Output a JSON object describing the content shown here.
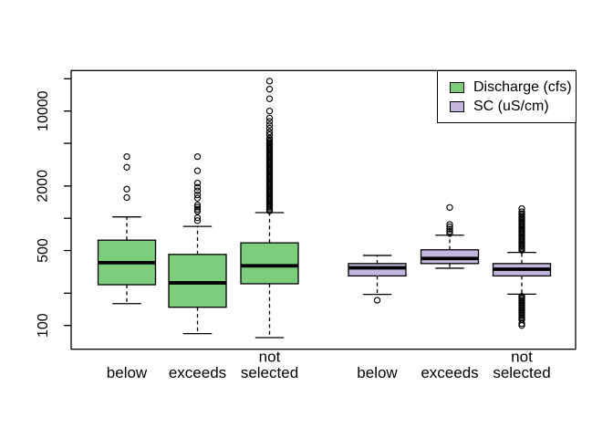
{
  "colors": {
    "discharge_green": "#7CCD7C",
    "sc_lavender": "#C3B5DC",
    "stroke_black": "#000000",
    "background": "#FFFFFF"
  },
  "legend": {
    "position": "topright",
    "entries": [
      {
        "label": "Discharge (cfs)",
        "color": "#7CCD7C"
      },
      {
        "label": "SC (uS/cm)",
        "color": "#C3B5DC"
      }
    ]
  },
  "chart_data": {
    "type": "boxplot",
    "title": "",
    "xlabel": "",
    "ylabel": "",
    "log_scale_y": true,
    "ylim": [
      60,
      24000
    ],
    "grid": false,
    "legend_position": "topright",
    "yaxis_ticks": [
      {
        "value": 100,
        "label": "100"
      },
      {
        "value": 200,
        "label": ""
      },
      {
        "value": 500,
        "label": "500"
      },
      {
        "value": 1000,
        "label": ""
      },
      {
        "value": 2000,
        "label": "2000"
      },
      {
        "value": 5000,
        "label": ""
      },
      {
        "value": 10000,
        "label": "10000"
      },
      {
        "value": 20000,
        "label": ""
      }
    ],
    "category_labels": [
      [
        "below"
      ],
      [
        "exceeds"
      ],
      [
        "not",
        "selected"
      ],
      [
        "below"
      ],
      [
        "exceeds"
      ],
      [
        "not",
        "selected"
      ]
    ],
    "boxes": [
      {
        "series": "Discharge (cfs)",
        "category": "below",
        "color": "#7CCD7C",
        "whisker_low": 160,
        "q1": 240,
        "median": 385,
        "q3": 625,
        "whisker_high": 1030,
        "outliers": [
          1560,
          1870,
          2990,
          3760
        ],
        "dense_outlier_ranges": []
      },
      {
        "series": "Discharge (cfs)",
        "category": "exceeds",
        "color": "#7CCD7C",
        "whisker_low": 84,
        "q1": 148,
        "median": 250,
        "q3": 460,
        "whisker_high": 840,
        "outliers": [
          950,
          1010,
          1160,
          1210,
          1270,
          1330,
          1540,
          1650,
          1800,
          1950,
          2130,
          2770,
          3760
        ],
        "dense_outlier_ranges": []
      },
      {
        "series": "Discharge (cfs)",
        "category": "not selected",
        "color": "#7CCD7C",
        "whisker_low": 77,
        "q1": 245,
        "median": 360,
        "q3": 590,
        "whisker_high": 1130,
        "outliers": [
          6000,
          6400,
          6900,
          7400,
          8000,
          8600,
          10000,
          13000,
          16000,
          19000
        ],
        "dense_outlier_ranges": [
          {
            "min": 1160,
            "max": 5600
          }
        ]
      },
      {
        "series": "SC (uS/cm)",
        "category": "below",
        "color": "#C3B5DC",
        "whisker_low": 195,
        "q1": 290,
        "median": 345,
        "q3": 378,
        "whisker_high": 450,
        "outliers": [
          172
        ],
        "dense_outlier_ranges": []
      },
      {
        "series": "SC (uS/cm)",
        "category": "exceeds",
        "color": "#C3B5DC",
        "whisker_low": 342,
        "q1": 378,
        "median": 422,
        "q3": 508,
        "whisker_high": 695,
        "outliers": [
          720,
          755,
          790,
          830,
          875,
          1260
        ],
        "dense_outlier_ranges": []
      },
      {
        "series": "SC (uS/cm)",
        "category": "not selected",
        "color": "#C3B5DC",
        "whisker_low": 196,
        "q1": 290,
        "median": 335,
        "q3": 378,
        "whisker_high": 480,
        "outliers": [
          100,
          104,
          1150,
          1230
        ],
        "dense_outlier_ranges": [
          {
            "min": 110,
            "max": 187
          },
          {
            "min": 495,
            "max": 1100
          }
        ]
      }
    ]
  }
}
